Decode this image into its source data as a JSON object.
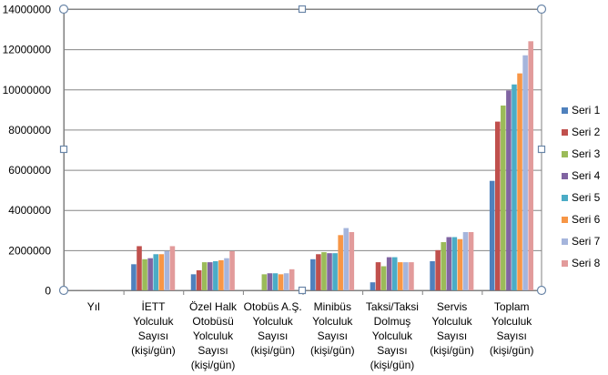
{
  "chart_data": {
    "type": "bar",
    "title": "",
    "xlabel": "",
    "ylabel": "",
    "ylim": [
      0,
      14000000
    ],
    "y_ticks": [
      "0",
      "2000000",
      "4000000",
      "6000000",
      "8000000",
      "10000000",
      "12000000",
      "14000000"
    ],
    "grid": true,
    "legend_position": "right",
    "categories": [
      [
        "Yıl"
      ],
      [
        "İETT",
        "Yolculuk",
        "Sayısı",
        "(kişi/gün)"
      ],
      [
        "Özel Halk",
        "Otobüsü",
        "Yolculuk",
        "Sayısı",
        "(kişi/gün)"
      ],
      [
        "Otobüs A.Ş.",
        "Yolculuk",
        "Sayısı",
        "(kişi/gün)"
      ],
      [
        "Minibüs",
        "Yolculuk",
        "Sayısı",
        "(kişi/gün)"
      ],
      [
        "Taksi/Taksi",
        "Dolmuş",
        "Yolculuk",
        "Sayısı",
        "(kişi/gün)"
      ],
      [
        "Servis",
        "Yolculuk",
        "Sayısı",
        "(kişi/gün)"
      ],
      [
        "Toplam",
        "Yolculuk",
        "Sayısı",
        "(kişi/gün)"
      ]
    ],
    "series": [
      {
        "name": "Seri 1",
        "color": "#4f81bd",
        "values": [
          2000,
          1300000,
          800000,
          0,
          1550000,
          400000,
          1450000,
          5450000
        ]
      },
      {
        "name": "Seri 2",
        "color": "#c0504d",
        "values": [
          2000,
          2200000,
          1000000,
          0,
          1800000,
          1400000,
          2000000,
          8400000
        ]
      },
      {
        "name": "Seri 3",
        "color": "#9bbb59",
        "values": [
          2000,
          1550000,
          1400000,
          800000,
          1900000,
          1200000,
          2400000,
          9200000
        ]
      },
      {
        "name": "Seri 4",
        "color": "#8064a2",
        "values": [
          2000,
          1600000,
          1400000,
          850000,
          1850000,
          1650000,
          2650000,
          9950000
        ]
      },
      {
        "name": "Seri 5",
        "color": "#4bacc6",
        "values": [
          2000,
          1800000,
          1450000,
          850000,
          1850000,
          1650000,
          2650000,
          10250000
        ]
      },
      {
        "name": "Seri 6",
        "color": "#f79646",
        "values": [
          2000,
          1800000,
          1500000,
          800000,
          2750000,
          1400000,
          2550000,
          10800000
        ]
      },
      {
        "name": "Seri 7",
        "color": "#a5b5dc",
        "values": [
          2000,
          1950000,
          1600000,
          850000,
          3100000,
          1400000,
          2900000,
          11700000
        ]
      },
      {
        "name": "Seri 8",
        "color": "#e29b9b",
        "values": [
          2000,
          2200000,
          1950000,
          1050000,
          2900000,
          1400000,
          2900000,
          12400000
        ]
      }
    ]
  }
}
